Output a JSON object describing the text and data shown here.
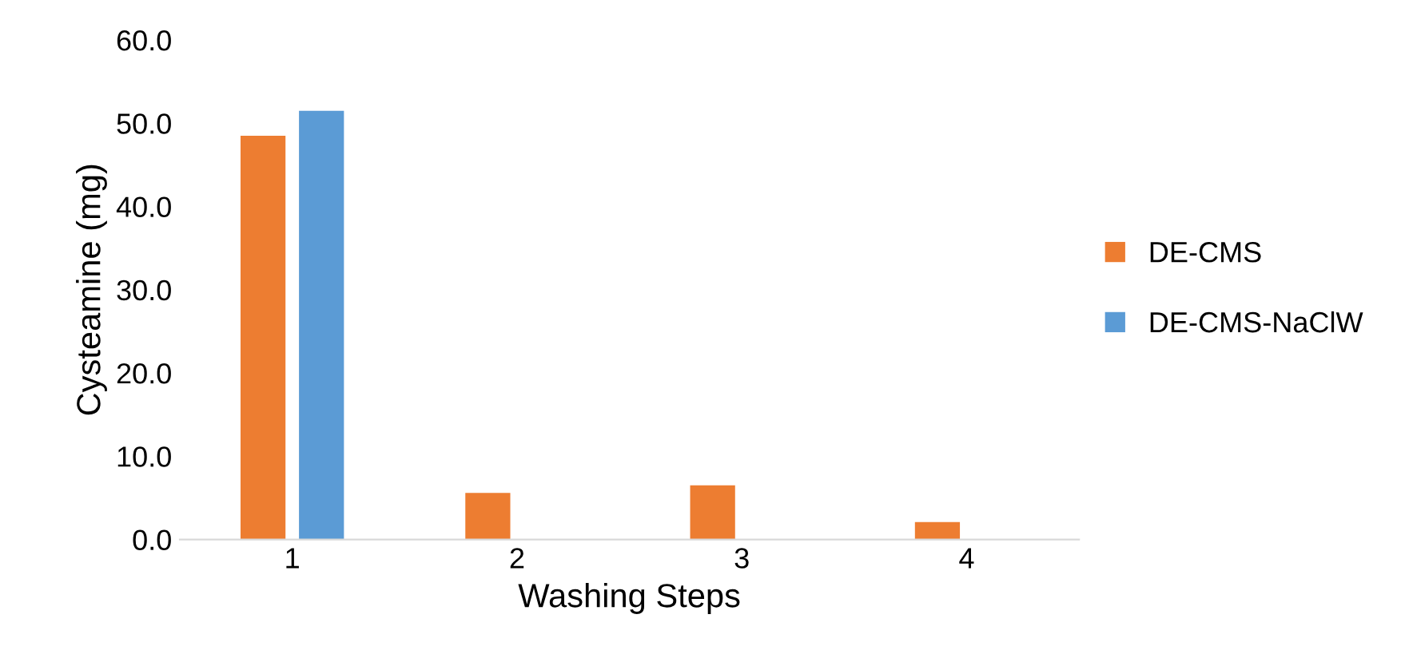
{
  "chart_data": {
    "type": "bar",
    "xlabel": "Washing Steps",
    "ylabel": "Cysteamine (mg)",
    "categories": [
      "1",
      "2",
      "3",
      "4"
    ],
    "series": [
      {
        "name": "DE-CMS",
        "color": "#ed7d31",
        "values": [
          48.5,
          5.6,
          6.5,
          2.1
        ]
      },
      {
        "name": "DE-CMS-NaClW",
        "color": "#5b9bd5",
        "values": [
          51.5,
          null,
          null,
          null
        ]
      }
    ],
    "ylim": [
      0,
      60
    ],
    "yticks": [
      {
        "value": 0,
        "label": "0.0"
      },
      {
        "value": 10,
        "label": "10.0"
      },
      {
        "value": 20,
        "label": "20.0"
      },
      {
        "value": 30,
        "label": "30.0"
      },
      {
        "value": 40,
        "label": "40.0"
      },
      {
        "value": 50,
        "label": "50.0"
      },
      {
        "value": 60,
        "label": "60.0"
      }
    ],
    "grid": false,
    "legend": "right"
  }
}
